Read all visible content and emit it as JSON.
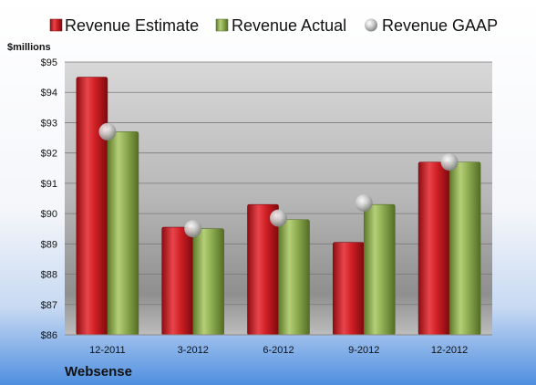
{
  "chart_data": {
    "type": "bar",
    "ylabel": "$millions",
    "company": "Websense",
    "categories": [
      "12-2011",
      "3-2012",
      "6-2012",
      "9-2012",
      "12-2012"
    ],
    "series": [
      {
        "name": "Revenue Estimate",
        "kind": "bar",
        "color": "#c8161d",
        "values": [
          94.5,
          89.55,
          90.3,
          89.05,
          91.7
        ]
      },
      {
        "name": "Revenue Actual",
        "kind": "bar",
        "color": "#8aa84a",
        "values": [
          92.7,
          89.5,
          89.8,
          90.3,
          91.7
        ]
      },
      {
        "name": "Revenue GAAP",
        "kind": "marker",
        "color": "#b8b8b8",
        "values": [
          92.7,
          89.5,
          89.85,
          90.35,
          91.7
        ]
      }
    ],
    "ylim": [
      86,
      95
    ],
    "yticks": [
      "$86",
      "$87",
      "$88",
      "$89",
      "$90",
      "$91",
      "$92",
      "$93",
      "$94",
      "$95"
    ],
    "grid": true,
    "legend_position": "top"
  }
}
